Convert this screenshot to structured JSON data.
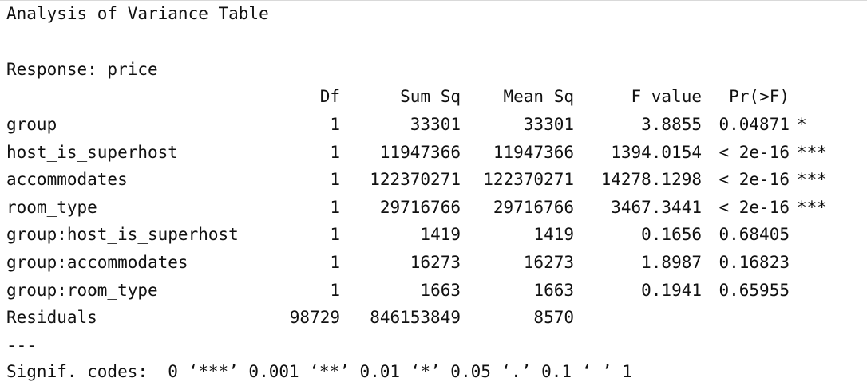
{
  "title": "Analysis of Variance Table",
  "response": "Response: price",
  "headers": {
    "df": "Df",
    "sum_sq": "Sum Sq",
    "mean_sq": "Mean Sq",
    "f_value": "F value",
    "pr": "Pr(>F)"
  },
  "rows": [
    {
      "term": "group",
      "df": "1",
      "sum_sq": "33301",
      "mean_sq": "33301",
      "f_value": "3.8855",
      "pr": "0.04871",
      "sig": "*"
    },
    {
      "term": "host_is_superhost",
      "df": "1",
      "sum_sq": "11947366",
      "mean_sq": "11947366",
      "f_value": "1394.0154",
      "pr": "< 2e-16",
      "sig": "***"
    },
    {
      "term": "accommodates",
      "df": "1",
      "sum_sq": "122370271",
      "mean_sq": "122370271",
      "f_value": "14278.1298",
      "pr": "< 2e-16",
      "sig": "***"
    },
    {
      "term": "room_type",
      "df": "1",
      "sum_sq": "29716766",
      "mean_sq": "29716766",
      "f_value": "3467.3441",
      "pr": "< 2e-16",
      "sig": "***"
    },
    {
      "term": "group:host_is_superhost",
      "df": "1",
      "sum_sq": "1419",
      "mean_sq": "1419",
      "f_value": "0.1656",
      "pr": "0.68405",
      "sig": ""
    },
    {
      "term": "group:accommodates",
      "df": "1",
      "sum_sq": "16273",
      "mean_sq": "16273",
      "f_value": "1.8987",
      "pr": "0.16823",
      "sig": ""
    },
    {
      "term": "group:room_type",
      "df": "1",
      "sum_sq": "1663",
      "mean_sq": "1663",
      "f_value": "0.1941",
      "pr": "0.65955",
      "sig": ""
    },
    {
      "term": "Residuals",
      "df": "98729",
      "sum_sq": "846153849",
      "mean_sq": "8570",
      "f_value": "",
      "pr": "",
      "sig": ""
    }
  ],
  "separator": "---",
  "signif_codes": "Signif. codes:  0 ‘***’ 0.001 ‘**’ 0.01 ‘*’ 0.05 ‘.’ 0.1 ‘ ’ 1"
}
